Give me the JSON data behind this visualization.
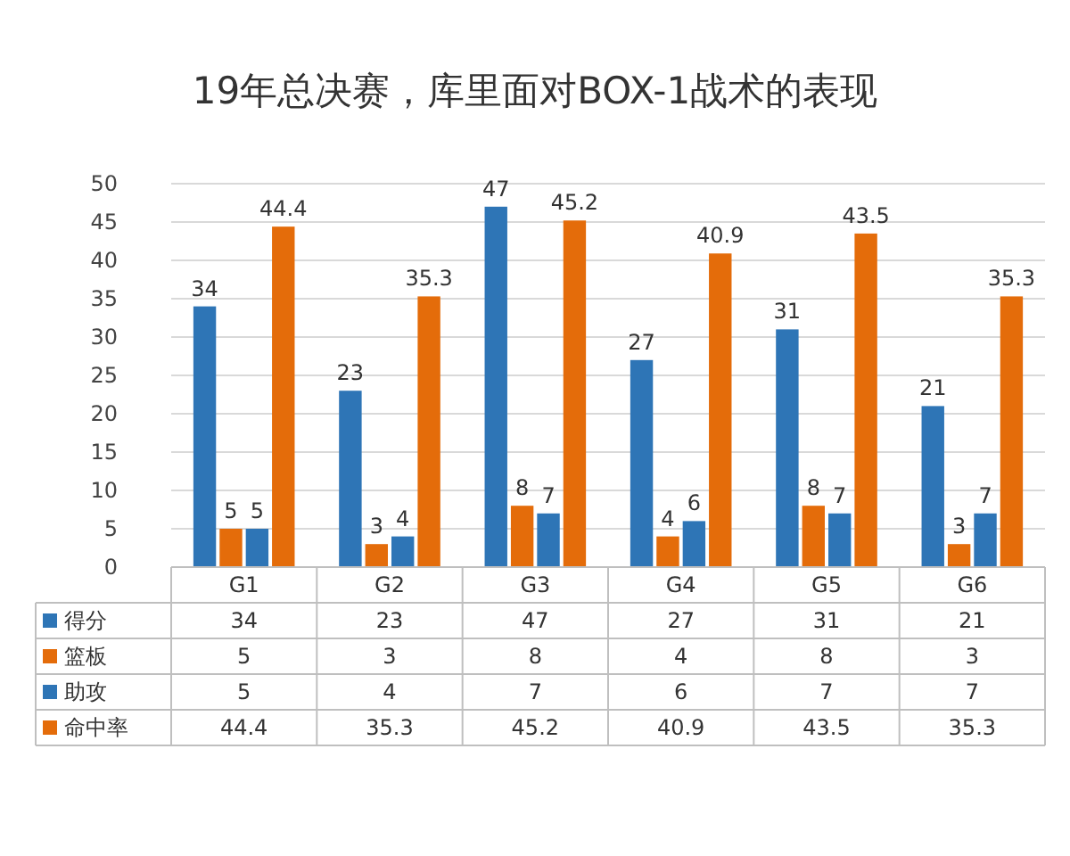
{
  "chart_data": {
    "type": "bar",
    "title": "19年总决赛，库里面对BOX-1战术的表现",
    "categories": [
      "G1",
      "G2",
      "G3",
      "G4",
      "G5",
      "G6"
    ],
    "series": [
      {
        "name": "得分",
        "color": "#2e75b6",
        "values": [
          34,
          23,
          47,
          27,
          31,
          21
        ]
      },
      {
        "name": "篮板",
        "color": "#e46c0a",
        "values": [
          5,
          3,
          8,
          4,
          8,
          3
        ]
      },
      {
        "name": "助攻",
        "color": "#2e75b6",
        "values": [
          5,
          4,
          7,
          6,
          7,
          7
        ]
      },
      {
        "name": "命中率",
        "color": "#e46c0a",
        "values": [
          44.4,
          35.3,
          45.2,
          40.9,
          43.5,
          35.3
        ]
      }
    ],
    "annotations": [
      "34",
      "23",
      "47",
      "27",
      "31",
      "21",
      "5",
      "3",
      "8",
      "4",
      "8",
      "3",
      "5",
      "4",
      "7",
      "6",
      "7",
      "7",
      "44.4",
      "35.3",
      "45.2",
      "40.9",
      "43.5",
      "35.3"
    ],
    "ylim": [
      0,
      50
    ],
    "yticks": [
      0,
      5,
      10,
      15,
      20,
      25,
      30,
      35,
      40,
      45,
      50
    ],
    "grid": "y",
    "data_labels": true,
    "legend": "bottom"
  }
}
